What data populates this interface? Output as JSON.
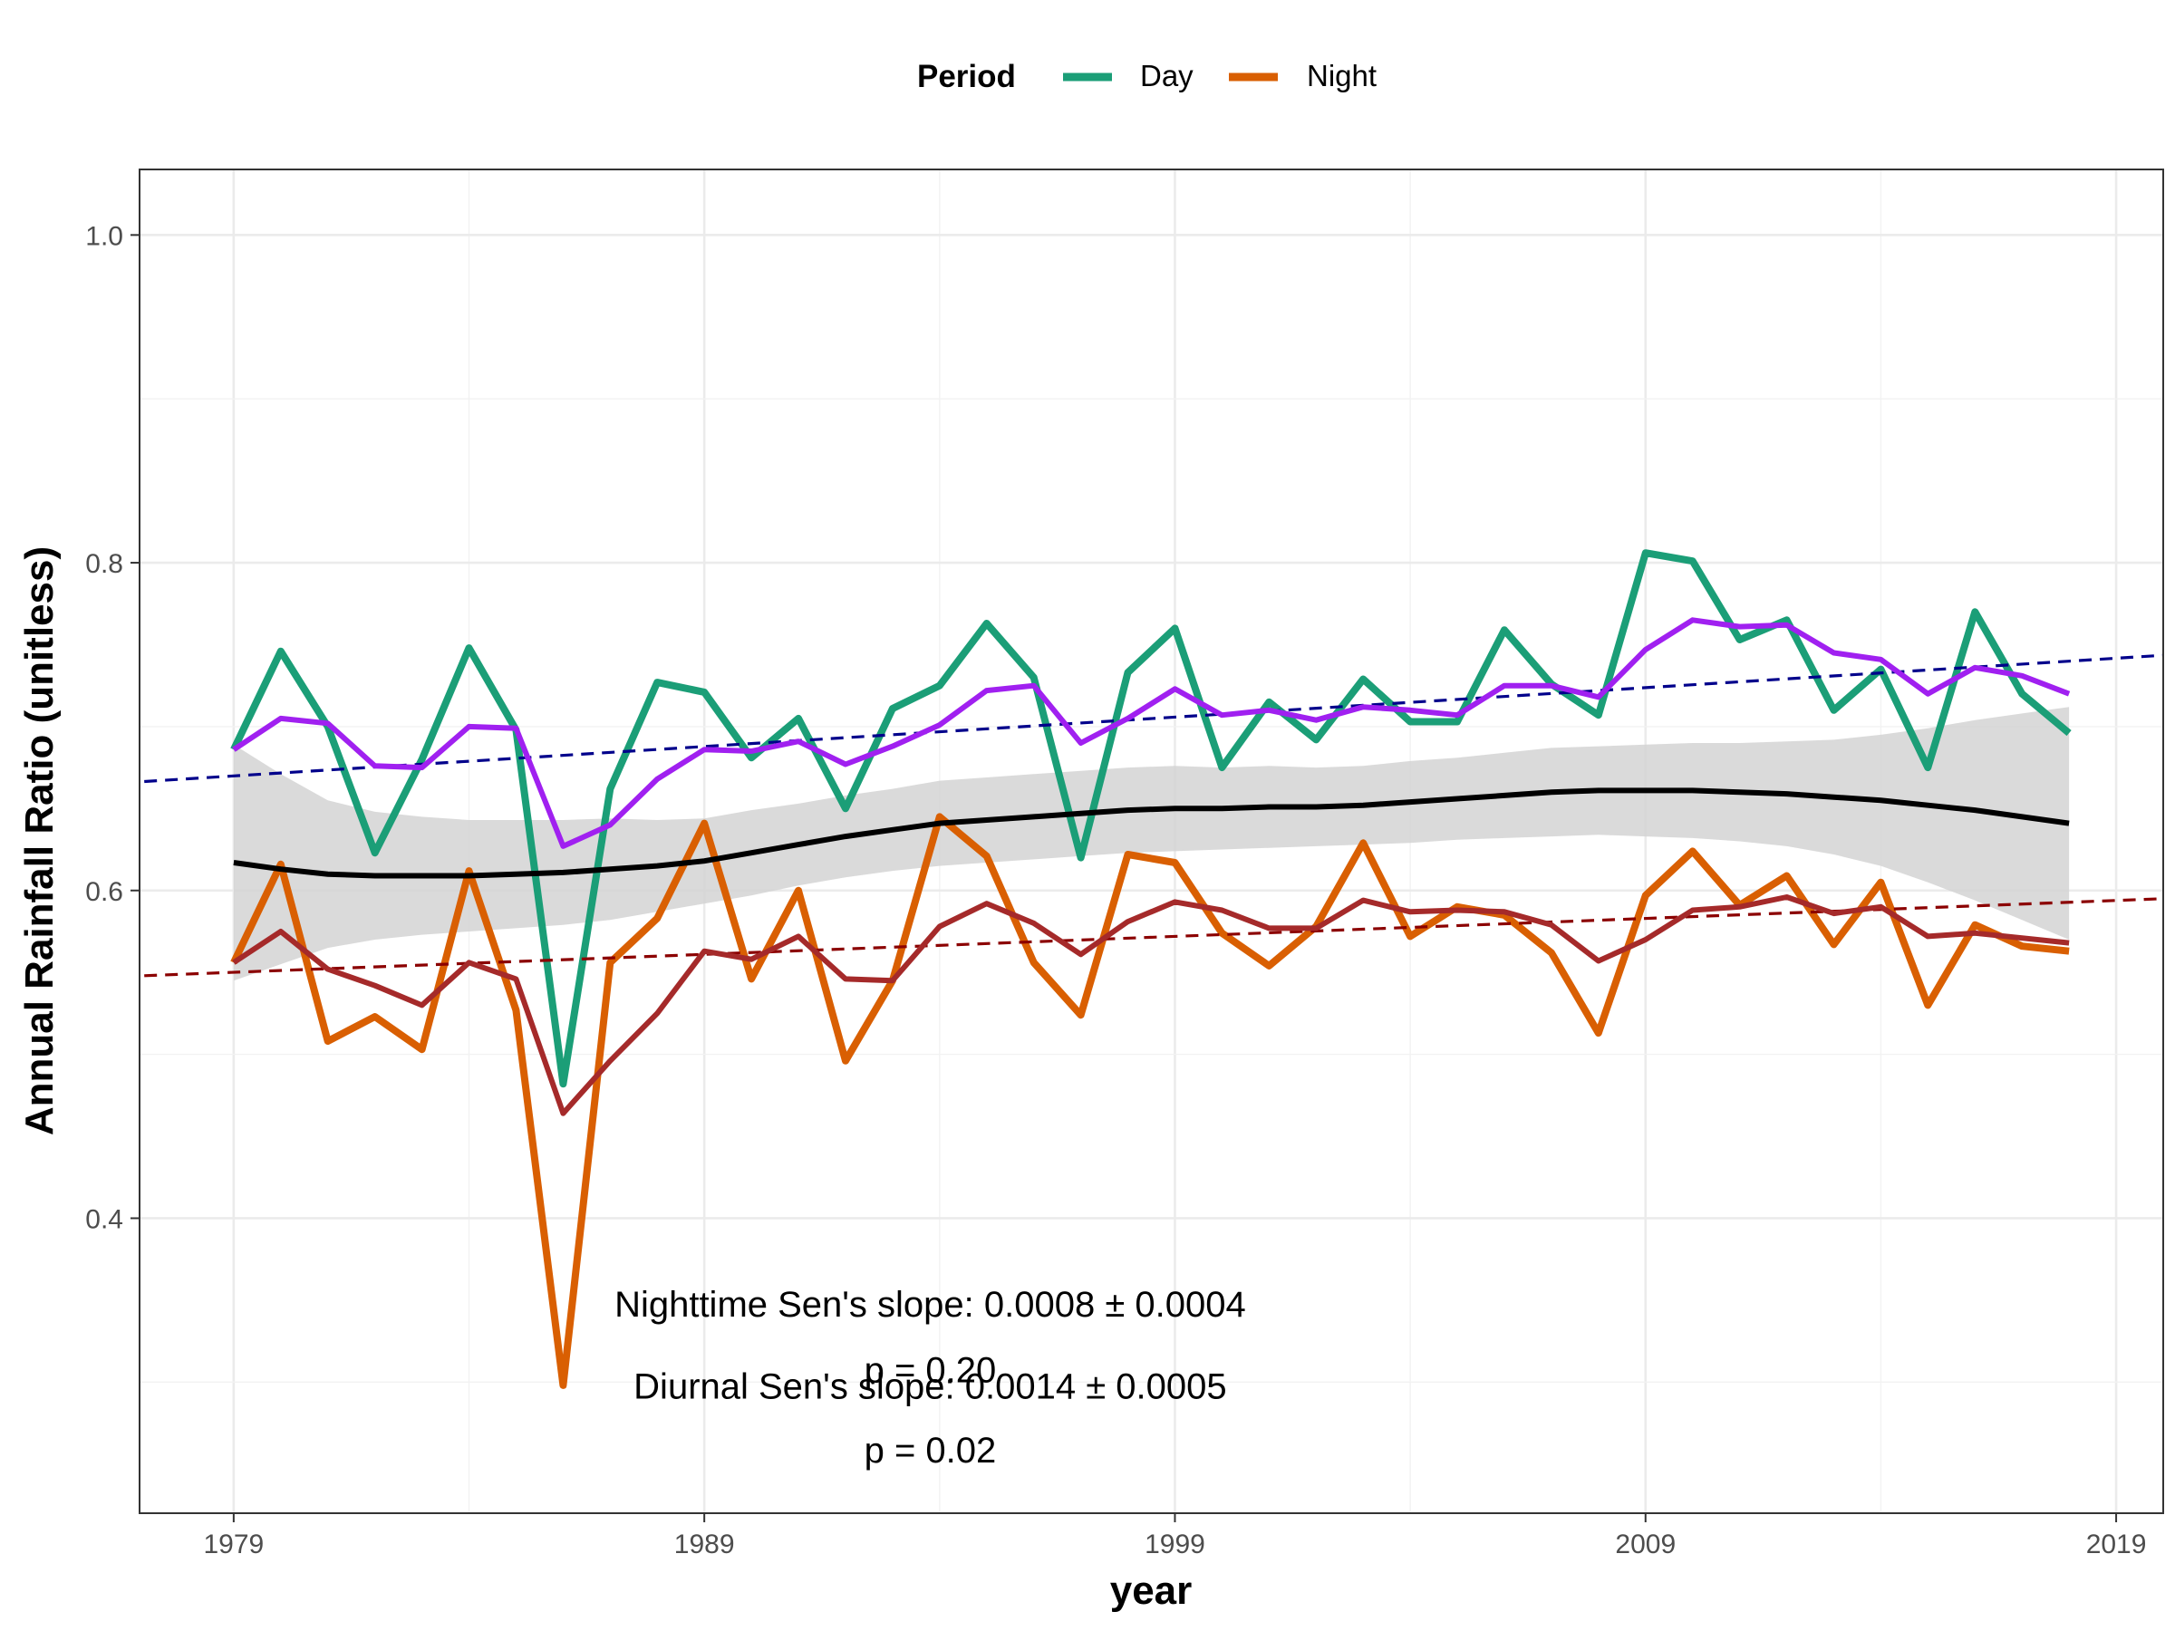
{
  "chart_data": {
    "type": "line",
    "xlabel": "year",
    "ylabel": "Annual Rainfall Ratio (unitless)",
    "xlim": [
      1977,
      2020
    ],
    "ylim": [
      0.22,
      1.04
    ],
    "x_ticks": [
      1979,
      1989,
      1999,
      2009,
      2019
    ],
    "x_tick_labels": [
      "1979",
      "1989",
      "1999",
      "2009",
      "2019"
    ],
    "y_ticks": [
      0.4,
      0.6,
      0.8,
      1.0
    ],
    "y_tick_labels": [
      "0.4",
      "0.6",
      "0.8",
      "1.0"
    ],
    "grid": true,
    "legend": {
      "title": "Period",
      "placement": "top",
      "entries": [
        {
          "label": "Day",
          "color": "#1b9e77"
        },
        {
          "label": "Night",
          "color": "#d95f02"
        }
      ]
    },
    "x": [
      1979,
      1980,
      1981,
      1982,
      1983,
      1984,
      1985,
      1986,
      1987,
      1988,
      1989,
      1990,
      1991,
      1992,
      1993,
      1994,
      1995,
      1996,
      1997,
      1998,
      1999,
      2000,
      2001,
      2002,
      2003,
      2004,
      2005,
      2006,
      2007,
      2008,
      2009,
      2010,
      2011,
      2012,
      2013,
      2014,
      2015,
      2016,
      2017,
      2018
    ],
    "series": [
      {
        "name": "Day",
        "color": "#1b9e77",
        "values": [
          0.686,
          0.746,
          0.7,
          0.623,
          0.68,
          0.748,
          0.698,
          0.482,
          0.662,
          0.727,
          0.721,
          0.681,
          0.705,
          0.65,
          0.711,
          0.725,
          0.763,
          0.73,
          0.62,
          0.733,
          0.76,
          0.675,
          0.715,
          0.692,
          0.729,
          0.703,
          0.703,
          0.759,
          0.726,
          0.707,
          0.806,
          0.801,
          0.753,
          0.765,
          0.71,
          0.735,
          0.675,
          0.77,
          0.72,
          0.696
        ]
      },
      {
        "name": "Night",
        "color": "#d95f02",
        "values": [
          0.556,
          0.616,
          0.508,
          0.523,
          0.503,
          0.612,
          0.527,
          0.298,
          0.556,
          0.583,
          0.641,
          0.546,
          0.6,
          0.496,
          0.545,
          0.645,
          0.621,
          0.556,
          0.524,
          0.622,
          0.617,
          0.574,
          0.554,
          0.578,
          0.629,
          0.572,
          0.59,
          0.585,
          0.562,
          0.513,
          0.597,
          0.624,
          0.591,
          0.609,
          0.567,
          0.605,
          0.53,
          0.579,
          0.566,
          0.563
        ]
      },
      {
        "color": "#a020f0",
        "values": [
          0.686,
          0.705,
          0.702,
          0.676,
          0.675,
          0.7,
          0.699,
          0.627,
          0.64,
          0.668,
          0.686,
          0.685,
          0.691,
          0.677,
          0.688,
          0.701,
          0.722,
          0.725,
          0.69,
          0.705,
          0.723,
          0.707,
          0.71,
          0.704,
          0.712,
          0.71,
          0.707,
          0.725,
          0.725,
          0.718,
          0.747,
          0.765,
          0.761,
          0.762,
          0.745,
          0.741,
          0.72,
          0.736,
          0.731,
          0.72
        ]
      },
      {
        "color": "#a52a2a",
        "values": [
          0.556,
          0.575,
          0.552,
          0.542,
          0.53,
          0.556,
          0.546,
          0.464,
          0.496,
          0.525,
          0.563,
          0.558,
          0.572,
          0.546,
          0.545,
          0.578,
          0.592,
          0.58,
          0.561,
          0.581,
          0.593,
          0.588,
          0.577,
          0.577,
          0.594,
          0.587,
          0.588,
          0.587,
          0.579,
          0.557,
          0.57,
          0.588,
          0.59,
          0.596,
          0.586,
          0.59,
          0.572,
          0.574,
          0.571,
          0.568
        ]
      },
      {
        "type": "smooth",
        "color": "#000000",
        "band_color": "#d3d3d3",
        "values": [
          0.617,
          0.613,
          0.61,
          0.609,
          0.609,
          0.609,
          0.61,
          0.611,
          0.613,
          0.615,
          0.618,
          0.623,
          0.628,
          0.633,
          0.637,
          0.641,
          0.643,
          0.645,
          0.647,
          0.649,
          0.65,
          0.65,
          0.651,
          0.651,
          0.652,
          0.654,
          0.656,
          0.658,
          0.66,
          0.661,
          0.661,
          0.661,
          0.66,
          0.659,
          0.657,
          0.655,
          0.652,
          0.649,
          0.645,
          0.641
        ],
        "lower": [
          0.545,
          0.555,
          0.565,
          0.57,
          0.573,
          0.575,
          0.577,
          0.579,
          0.582,
          0.587,
          0.592,
          0.597,
          0.603,
          0.608,
          0.612,
          0.615,
          0.617,
          0.619,
          0.621,
          0.623,
          0.624,
          0.625,
          0.626,
          0.627,
          0.628,
          0.629,
          0.631,
          0.632,
          0.633,
          0.634,
          0.633,
          0.632,
          0.63,
          0.627,
          0.622,
          0.615,
          0.605,
          0.594,
          0.582,
          0.57
        ],
        "upper": [
          0.689,
          0.671,
          0.655,
          0.648,
          0.645,
          0.643,
          0.643,
          0.643,
          0.644,
          0.643,
          0.644,
          0.649,
          0.653,
          0.658,
          0.662,
          0.667,
          0.669,
          0.671,
          0.673,
          0.675,
          0.676,
          0.675,
          0.676,
          0.675,
          0.676,
          0.679,
          0.681,
          0.684,
          0.687,
          0.688,
          0.689,
          0.69,
          0.69,
          0.691,
          0.692,
          0.695,
          0.699,
          0.704,
          0.708,
          0.712
        ]
      },
      {
        "type": "trend",
        "color": "#00008b",
        "style": "dashed",
        "x": [
          1977.1,
          2020.0
        ],
        "values": [
          0.6665,
          0.7435
        ]
      },
      {
        "type": "trend",
        "color": "#8b0000",
        "style": "dashed",
        "x": [
          1977.1,
          2020.0
        ],
        "values": [
          0.548,
          0.595
        ]
      }
    ],
    "annotations": [
      {
        "text": "Nighttime Sen's slope: 0.0008 ± 0.0004",
        "x": 1993.8,
        "y": 0.34
      },
      {
        "text": "p = 0.20",
        "x": 1993.8,
        "y": 0.3
      },
      {
        "text": "Diurnal Sen's slope: 0.0014 ± 0.0005",
        "x": 1993.8,
        "y": 0.29
      },
      {
        "text": "p = 0.02",
        "x": 1993.8,
        "y": 0.251
      }
    ]
  }
}
